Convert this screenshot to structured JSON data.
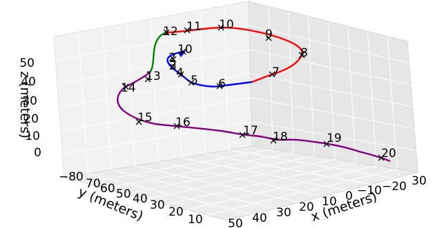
{
  "chart_data": {
    "type": "line",
    "projection": "3d",
    "xlabel": "x (meters)",
    "ylabel": "y (meters)",
    "zlabel": "z (meters)",
    "x_ticks": [
      "50",
      "40",
      "30",
      "20",
      "10",
      "0",
      "−10",
      "−20",
      "30"
    ],
    "y_ticks": [
      "−80",
      "70",
      "60",
      "50",
      "40",
      "30",
      "20",
      "10"
    ],
    "z_ticks": [
      "50",
      "40",
      "30",
      "20",
      "10",
      "0"
    ],
    "grid": true,
    "series": [
      {
        "color": "#0000ff",
        "waypoints": [
          "2",
          "3",
          "4",
          "5",
          "6"
        ]
      },
      {
        "color": "#ff0000",
        "waypoints": [
          "7",
          "8",
          "9",
          "10",
          "11"
        ]
      },
      {
        "color": "#008000",
        "waypoints": [
          "12"
        ]
      },
      {
        "color": "#800080",
        "waypoints": [
          "13",
          "14",
          "15",
          "16",
          "17",
          "18",
          "19",
          "20"
        ]
      }
    ],
    "waypoint_labels": [
      "10",
      "2",
      "3",
      "4",
      "5",
      "6",
      "7",
      "8",
      "9",
      "10",
      "11",
      "12",
      "13",
      "14",
      "15",
      "16",
      "17",
      "18",
      "19",
      "20"
    ]
  }
}
